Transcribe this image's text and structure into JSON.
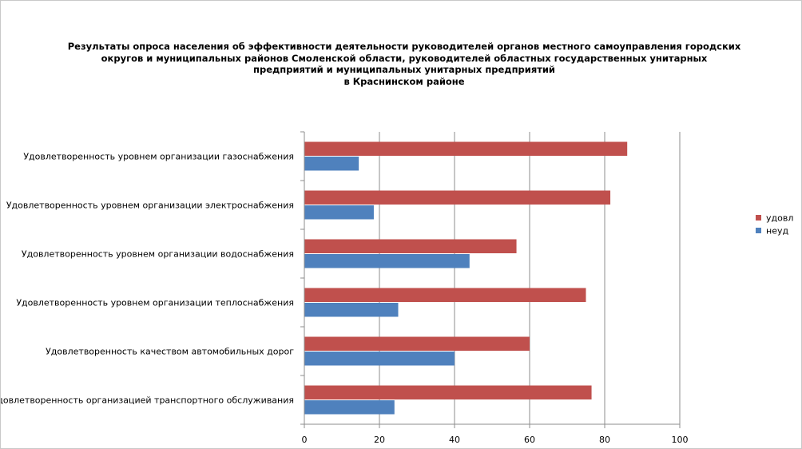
{
  "chart_data": {
    "type": "bar",
    "orientation": "horizontal",
    "title_lines": [
      "Результаты опроса населения об эффективности деятельности руководителей органов местного самоуправления городских",
      "округов и муниципальных районов Смоленской области, руководителей областных государственных унитарных",
      "предприятий и муниципальных унитарных предприятий",
      "в Краснинском районе"
    ],
    "categories": [
      "Удовлетворенность уровнем организации газоснабжения",
      "Удовлетворенность уровнем организации электроснабжения",
      "Удовлетворенность уровнем организации водоснабжения",
      "Удовлетворенность уровнем организации теплоснабжения",
      "Удовлетворенность качеством автомобильных дорог",
      "Удовлетворенность организацией транспортного обслуживания"
    ],
    "series": [
      {
        "name": "удовл",
        "color": "#c0504d",
        "values": [
          86,
          81.5,
          56.5,
          75,
          60,
          76.5
        ]
      },
      {
        "name": "неуд",
        "color": "#4f81bd",
        "values": [
          14.5,
          18.5,
          44,
          25,
          40,
          24
        ]
      }
    ],
    "xlim": [
      0,
      100
    ],
    "xticks": [
      0,
      20,
      40,
      60,
      80,
      100
    ],
    "grid": true,
    "legend_position": "right"
  }
}
